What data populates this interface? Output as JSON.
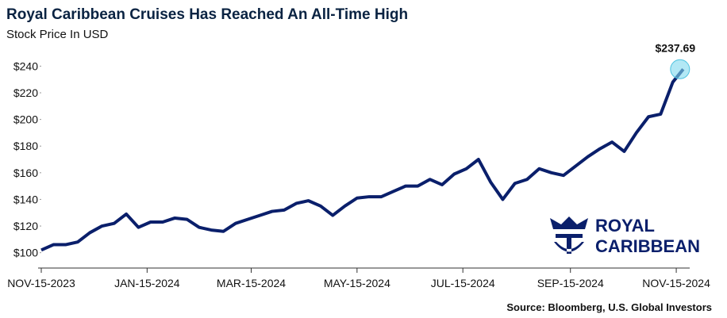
{
  "chart_data": {
    "type": "line",
    "title": "Royal Caribbean Cruises Has Reached An All-Time High",
    "subtitle": "Stock Price In USD",
    "source": "Source: Bloomberg, U.S. Global Investors",
    "logo": [
      "ROYAL",
      "CARIBBEAN"
    ],
    "x": [
      "2023-11-15",
      "2023-11-22",
      "2023-11-29",
      "2023-12-06",
      "2023-12-13",
      "2023-12-20",
      "2023-12-27",
      "2024-01-03",
      "2024-01-10",
      "2024-01-17",
      "2024-01-24",
      "2024-01-31",
      "2024-02-07",
      "2024-02-14",
      "2024-02-21",
      "2024-02-28",
      "2024-03-06",
      "2024-03-13",
      "2024-03-20",
      "2024-03-27",
      "2024-04-03",
      "2024-04-10",
      "2024-04-17",
      "2024-04-24",
      "2024-05-01",
      "2024-05-08",
      "2024-05-15",
      "2024-05-22",
      "2024-05-29",
      "2024-06-05",
      "2024-06-12",
      "2024-06-19",
      "2024-06-26",
      "2024-07-03",
      "2024-07-10",
      "2024-07-17",
      "2024-07-24",
      "2024-07-31",
      "2024-08-07",
      "2024-08-14",
      "2024-08-21",
      "2024-08-28",
      "2024-09-04",
      "2024-09-11",
      "2024-09-18",
      "2024-09-25",
      "2024-10-02",
      "2024-10-09",
      "2024-10-16",
      "2024-10-23",
      "2024-10-30",
      "2024-11-06",
      "2024-11-13",
      "2024-11-19"
    ],
    "series": [
      {
        "name": "Royal Caribbean",
        "color": "#0a1f6b",
        "values": [
          102,
          106,
          106,
          108,
          115,
          120,
          122,
          129,
          119,
          123,
          123,
          126,
          125,
          119,
          117,
          116,
          122,
          125,
          128,
          131,
          132,
          137,
          139,
          135,
          128,
          135,
          141,
          142,
          142,
          146,
          150,
          150,
          155,
          151,
          159,
          163,
          170,
          153,
          140,
          152,
          155,
          163,
          160,
          158,
          165,
          172,
          178,
          183,
          176,
          190,
          202,
          204,
          228,
          237.69
        ],
        "value_labels": [
          null,
          null,
          null,
          null,
          null,
          null,
          null,
          null,
          null,
          null,
          null,
          null,
          null,
          null,
          null,
          null,
          null,
          null,
          null,
          null,
          null,
          null,
          null,
          null,
          null,
          null,
          null,
          null,
          null,
          null,
          null,
          null,
          null,
          null,
          null,
          null,
          null,
          null,
          null,
          null,
          null,
          null,
          null,
          null,
          null,
          null,
          null,
          null,
          null,
          null,
          null,
          null,
          null,
          "$237.69"
        ]
      }
    ],
    "xlim": [
      "2023-11-15",
      "2024-11-20"
    ],
    "xticks": [
      {
        "value": "2023-11-15",
        "label": "NOV-15-2023"
      },
      {
        "value": "2024-01-15",
        "label": "JAN-15-2024"
      },
      {
        "value": "2024-03-15",
        "label": "MAR-15-2024"
      },
      {
        "value": "2024-05-15",
        "label": "MAY-15-2024"
      },
      {
        "value": "2024-07-15",
        "label": "JUL-15-2024"
      },
      {
        "value": "2024-09-15",
        "label": "SEP-15-2024"
      },
      {
        "value": "2024-11-15",
        "label": "NOV-15-2024"
      }
    ],
    "ylim": [
      98,
      245
    ],
    "yticks": [
      {
        "value": 100,
        "label": "$100"
      },
      {
        "value": 120,
        "label": "$120"
      },
      {
        "value": 140,
        "label": "$140"
      },
      {
        "value": 160,
        "label": "$160"
      },
      {
        "value": 180,
        "label": "$180"
      },
      {
        "value": 200,
        "label": "$200"
      },
      {
        "value": 220,
        "label": "$220"
      },
      {
        "value": 240,
        "label": "$240"
      }
    ]
  }
}
